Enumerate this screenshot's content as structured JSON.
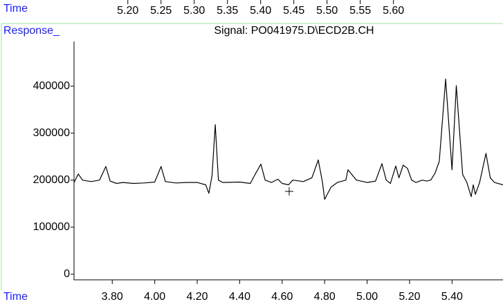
{
  "chart_data": [
    {
      "type": "line",
      "x_label": "Time",
      "xlim": [
        5.119,
        5.765
      ],
      "xticks": [
        {
          "value": 5.2,
          "label": "5.20"
        },
        {
          "value": 5.25,
          "label": "5.25"
        },
        {
          "value": 5.3,
          "label": "5.30"
        },
        {
          "value": 5.35,
          "label": "5.35"
        },
        {
          "value": 5.4,
          "label": "5.40"
        },
        {
          "value": 5.45,
          "label": "5.45"
        },
        {
          "value": 5.5,
          "label": "5.50"
        },
        {
          "value": 5.55,
          "label": "5.55"
        },
        {
          "value": 5.6,
          "label": "5.60"
        }
      ]
    },
    {
      "type": "line",
      "title": "Signal: PO041975.D\\ECD2B.CH",
      "x_label": "Time",
      "y_label": "Response_",
      "xlim": [
        3.62,
        5.64
      ],
      "ylim": [
        -12000,
        495000
      ],
      "xticks": [
        {
          "value": 3.8,
          "label": "3.80"
        },
        {
          "value": 4.0,
          "label": "4.00"
        },
        {
          "value": 4.2,
          "label": "4.20"
        },
        {
          "value": 4.4,
          "label": "4.40"
        },
        {
          "value": 4.6,
          "label": "4.60"
        },
        {
          "value": 4.8,
          "label": "4.80"
        },
        {
          "value": 5.0,
          "label": "5.00"
        },
        {
          "value": 5.2,
          "label": "5.20"
        },
        {
          "value": 5.4,
          "label": "5.40"
        }
      ],
      "yticks": [
        0,
        100000,
        200000,
        300000,
        400000
      ],
      "x": [
        3.62,
        3.64,
        3.66,
        3.7,
        3.74,
        3.77,
        3.79,
        3.82,
        3.85,
        3.9,
        3.95,
        4.0,
        4.03,
        4.05,
        4.1,
        4.15,
        4.2,
        4.24,
        4.255,
        4.27,
        4.285,
        4.3,
        4.32,
        4.4,
        4.45,
        4.47,
        4.5,
        4.52,
        4.55,
        4.58,
        4.6,
        4.63,
        4.65,
        4.7,
        4.74,
        4.77,
        4.79,
        4.8,
        4.83,
        4.86,
        4.9,
        4.91,
        4.95,
        5.0,
        5.04,
        5.07,
        5.09,
        5.11,
        5.135,
        5.15,
        5.17,
        5.19,
        5.21,
        5.23,
        5.26,
        5.28,
        5.3,
        5.32,
        5.34,
        5.37,
        5.4,
        5.42,
        5.45,
        5.47,
        5.49,
        5.5,
        5.51,
        5.53,
        5.56,
        5.58,
        5.6,
        5.64
      ],
      "series": [
        {
          "color": "#000000",
          "values": [
            195000,
            213000,
            200000,
            197000,
            200000,
            229000,
            198000,
            193000,
            195000,
            193000,
            194000,
            196000,
            229000,
            197000,
            194000,
            195000,
            195000,
            190000,
            172000,
            210000,
            318000,
            200000,
            195000,
            196000,
            193000,
            210000,
            234000,
            200000,
            195000,
            202000,
            193000,
            190000,
            200000,
            197000,
            205000,
            243000,
            195000,
            159000,
            185000,
            195000,
            200000,
            222000,
            200000,
            195000,
            198000,
            235000,
            200000,
            193000,
            230000,
            205000,
            232000,
            225000,
            200000,
            195000,
            200000,
            198000,
            200000,
            215000,
            240000,
            415000,
            222000,
            401000,
            212000,
            195000,
            165000,
            190000,
            170000,
            195000,
            257000,
            205000,
            195000,
            190000
          ]
        }
      ]
    }
  ]
}
